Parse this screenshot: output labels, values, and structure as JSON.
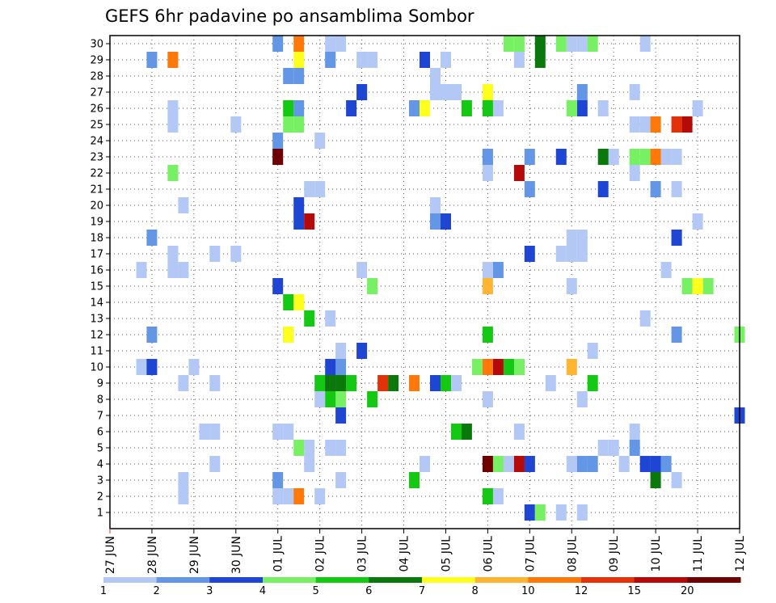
{
  "chart_data": {
    "type": "heatmap",
    "title": "GEFS 6hr padavine po ansamblima Sombor",
    "xlabel": "",
    "ylabel": "",
    "x_tick_labels": [
      "27 JUN",
      "28 JUN",
      "29 JUN",
      "30 JUN",
      "01 JUL",
      "02 JUL",
      "03 JUL",
      "04 JUL",
      "05 JUL",
      "06 JUL",
      "07 JUL",
      "08 JUL",
      "09 JUL",
      "10 JUL",
      "11 JUL",
      "12 JUL"
    ],
    "y_tick_labels": [
      "1",
      "2",
      "3",
      "4",
      "5",
      "6",
      "7",
      "8",
      "9",
      "10",
      "11",
      "12",
      "13",
      "14",
      "15",
      "16",
      "17",
      "18",
      "19",
      "20",
      "21",
      "22",
      "23",
      "24",
      "25",
      "26",
      "27",
      "28",
      "29",
      "30"
    ],
    "ylim": [
      1,
      30
    ],
    "grid": true,
    "legend": {
      "placement": "bottom",
      "labels": [
        "1",
        "2",
        "3",
        "4",
        "5",
        "6",
        "7",
        "8",
        "10",
        "12",
        "15",
        "20"
      ],
      "colors": [
        "#b4c8f5",
        "#6496e6",
        "#1e46d2",
        "#78f064",
        "#14c814",
        "#0a780a",
        "#ffff1e",
        "#ffb432",
        "#ff780a",
        "#e1320a",
        "#b40a0a",
        "#6e0000"
      ]
    },
    "series": [
      {
        "name": "1",
        "color": "#b4c8f5",
        "points": [
          [
            1.0,
            10
          ],
          [
            1.5,
            17
          ],
          [
            1.5,
            16
          ],
          [
            1.75,
            16
          ],
          [
            2.0,
            10
          ],
          [
            2.25,
            6
          ],
          [
            2.5,
            6
          ],
          [
            2.5,
            9
          ],
          [
            2.5,
            17
          ],
          [
            0.75,
            16
          ],
          [
            0.75,
            10
          ],
          [
            0.75,
            16
          ],
          [
            1.75,
            3
          ],
          [
            1.75,
            9
          ],
          [
            1.75,
            20
          ],
          [
            1.5,
            22
          ],
          [
            1.5,
            26
          ],
          [
            1.5,
            25
          ],
          [
            1.75,
            2
          ],
          [
            2.5,
            4
          ],
          [
            3.0,
            25
          ],
          [
            3.0,
            17
          ],
          [
            4.0,
            23
          ],
          [
            4.0,
            6
          ],
          [
            4.25,
            6
          ],
          [
            4.0,
            2
          ],
          [
            4.25,
            2
          ],
          [
            4.75,
            21
          ],
          [
            5.0,
            21
          ],
          [
            5.0,
            24
          ],
          [
            5.25,
            29
          ],
          [
            5.25,
            30
          ],
          [
            5.5,
            30
          ],
          [
            5.0,
            8
          ],
          [
            5.0,
            2
          ],
          [
            4.75,
            5
          ],
          [
            4.75,
            4
          ],
          [
            5.25,
            13
          ],
          [
            5.25,
            5
          ],
          [
            5.5,
            5
          ],
          [
            5.5,
            11
          ],
          [
            5.5,
            3
          ],
          [
            6.0,
            29
          ],
          [
            6.25,
            29
          ],
          [
            6.0,
            16
          ],
          [
            6.0,
            27
          ],
          [
            7.75,
            28
          ],
          [
            7.75,
            27
          ],
          [
            8.0,
            27
          ],
          [
            7.75,
            20
          ],
          [
            7.5,
            4
          ],
          [
            7.25,
            26
          ],
          [
            8.25,
            27
          ],
          [
            8.25,
            9
          ],
          [
            8.0,
            29
          ],
          [
            9.0,
            23
          ],
          [
            9.0,
            22
          ],
          [
            9.0,
            16
          ],
          [
            9.0,
            8
          ],
          [
            9.25,
            2
          ],
          [
            9.25,
            26
          ],
          [
            9.5,
            4
          ],
          [
            9.75,
            6
          ],
          [
            9.75,
            29
          ],
          [
            10.25,
            30
          ],
          [
            10.75,
            17
          ],
          [
            11.0,
            17
          ],
          [
            11.25,
            17
          ],
          [
            11.0,
            15
          ],
          [
            10.5,
            9
          ],
          [
            11.0,
            4
          ],
          [
            11.25,
            8
          ],
          [
            11.25,
            1
          ],
          [
            11.0,
            18
          ],
          [
            11.25,
            18
          ],
          [
            11.0,
            30
          ],
          [
            11.25,
            30
          ],
          [
            11.5,
            11
          ],
          [
            11.75,
            26
          ],
          [
            11.75,
            5
          ],
          [
            12.0,
            5
          ],
          [
            12.0,
            23
          ],
          [
            12.25,
            4
          ],
          [
            12.5,
            25
          ],
          [
            12.75,
            25
          ],
          [
            12.5,
            27
          ],
          [
            12.5,
            22
          ],
          [
            12.75,
            13
          ],
          [
            13.25,
            23
          ],
          [
            13.5,
            23
          ],
          [
            13.25,
            16
          ],
          [
            13.5,
            21
          ],
          [
            13.5,
            3
          ],
          [
            14.0,
            26
          ],
          [
            14.0,
            19
          ],
          [
            12.5,
            6
          ],
          [
            10.75,
            1
          ],
          [
            12.75,
            30
          ]
        ]
      },
      {
        "name": "2",
        "color": "#6496e6",
        "points": [
          [
            1.0,
            29
          ],
          [
            1.0,
            18
          ],
          [
            1.0,
            12
          ],
          [
            4.0,
            24
          ],
          [
            4.0,
            30
          ],
          [
            4.25,
            28
          ],
          [
            4.5,
            28
          ],
          [
            4.5,
            26
          ],
          [
            4.25,
            12
          ],
          [
            4.0,
            3
          ],
          [
            5.25,
            29
          ],
          [
            5.5,
            10
          ],
          [
            6.0,
            27
          ],
          [
            7.25,
            26
          ],
          [
            7.75,
            19
          ],
          [
            9.0,
            23
          ],
          [
            9.25,
            16
          ],
          [
            9.5,
            10
          ],
          [
            9.75,
            10
          ],
          [
            10.0,
            23
          ],
          [
            10.0,
            21
          ],
          [
            10.0,
            4
          ],
          [
            11.25,
            4
          ],
          [
            11.5,
            4
          ],
          [
            11.25,
            27
          ],
          [
            12.5,
            5
          ],
          [
            13.25,
            4
          ],
          [
            13.5,
            12
          ],
          [
            13.0,
            21
          ],
          [
            13.5,
            18
          ]
        ]
      },
      {
        "name": "3",
        "color": "#1e46d2",
        "points": [
          [
            1.0,
            10
          ],
          [
            4.0,
            15
          ],
          [
            4.5,
            19
          ],
          [
            4.5,
            20
          ],
          [
            5.25,
            10
          ],
          [
            5.25,
            9
          ],
          [
            5.5,
            7
          ],
          [
            6.0,
            11
          ],
          [
            6.0,
            27
          ],
          [
            5.75,
            26
          ],
          [
            7.5,
            29
          ],
          [
            7.75,
            9
          ],
          [
            8.0,
            19
          ],
          [
            10.0,
            17
          ],
          [
            10.0,
            1
          ],
          [
            10.0,
            4
          ],
          [
            10.75,
            23
          ],
          [
            11.25,
            26
          ],
          [
            11.75,
            21
          ],
          [
            12.75,
            4
          ],
          [
            13.0,
            4
          ],
          [
            13.5,
            18
          ],
          [
            15.0,
            7
          ]
        ]
      },
      {
        "name": "4",
        "color": "#78f064",
        "points": [
          [
            1.5,
            29
          ],
          [
            1.5,
            22
          ],
          [
            4.25,
            25
          ],
          [
            4.5,
            25
          ],
          [
            4.5,
            5
          ],
          [
            4.5,
            14
          ],
          [
            5.5,
            8
          ],
          [
            6.25,
            15
          ],
          [
            8.75,
            10
          ],
          [
            9.25,
            4
          ],
          [
            9.75,
            10
          ],
          [
            10.25,
            1
          ],
          [
            10.75,
            30
          ],
          [
            11.0,
            26
          ],
          [
            11.5,
            30
          ],
          [
            12.5,
            23
          ],
          [
            12.75,
            23
          ],
          [
            13.75,
            15
          ],
          [
            14.25,
            15
          ],
          [
            15.0,
            12
          ],
          [
            9.5,
            30
          ],
          [
            9.75,
            30
          ]
        ]
      },
      {
        "name": "5",
        "color": "#14c814",
        "points": [
          [
            4.25,
            26
          ],
          [
            4.25,
            14
          ],
          [
            4.75,
            13
          ],
          [
            5.0,
            9
          ],
          [
            5.25,
            8
          ],
          [
            5.75,
            9
          ],
          [
            6.25,
            8
          ],
          [
            7.25,
            3
          ],
          [
            8.0,
            9
          ],
          [
            8.25,
            6
          ],
          [
            8.5,
            26
          ],
          [
            9.0,
            26
          ],
          [
            9.0,
            12
          ],
          [
            9.0,
            2
          ],
          [
            9.5,
            10
          ],
          [
            11.5,
            9
          ]
        ]
      },
      {
        "name": "6",
        "color": "#0a780a",
        "points": [
          [
            10.25,
            30
          ],
          [
            10.25,
            29
          ],
          [
            5.25,
            9
          ],
          [
            5.5,
            9
          ],
          [
            6.75,
            9
          ],
          [
            8.5,
            6
          ],
          [
            11.75,
            23
          ],
          [
            13.0,
            3
          ]
        ]
      },
      {
        "name": "7",
        "color": "#ffff1e",
        "points": [
          [
            4.5,
            29
          ],
          [
            4.5,
            14
          ],
          [
            4.25,
            12
          ],
          [
            7.5,
            26
          ],
          [
            9.0,
            27
          ],
          [
            14.0,
            15
          ]
        ]
      },
      {
        "name": "8",
        "color": "#ffb432",
        "points": [
          [
            9.0,
            15
          ],
          [
            11.0,
            10
          ]
        ]
      },
      {
        "name": "10",
        "color": "#ff780a",
        "points": [
          [
            1.5,
            29
          ],
          [
            4.5,
            30
          ],
          [
            4.5,
            2
          ],
          [
            7.25,
            9
          ],
          [
            9.0,
            10
          ],
          [
            13.0,
            25
          ],
          [
            13.0,
            23
          ]
        ]
      },
      {
        "name": "12",
        "color": "#e1320a",
        "points": [
          [
            6.5,
            9
          ],
          [
            13.5,
            25
          ]
        ]
      },
      {
        "name": "15",
        "color": "#b40a0a",
        "points": [
          [
            4.75,
            19
          ],
          [
            9.25,
            10
          ],
          [
            9.75,
            22
          ],
          [
            9.75,
            4
          ],
          [
            13.75,
            25
          ]
        ]
      },
      {
        "name": "20",
        "color": "#6e0000",
        "points": [
          [
            4.0,
            23
          ],
          [
            9.0,
            4
          ]
        ]
      }
    ]
  }
}
